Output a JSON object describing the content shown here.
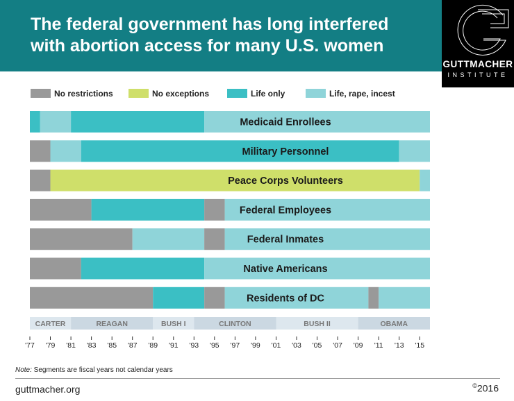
{
  "header": {
    "title_line1": "The federal government has long interfered",
    "title_line2": "with abortion access for many U.S. women",
    "background_color": "#137e84"
  },
  "logo": {
    "name": "GUTTMACHER",
    "sub": "INSTITUTE"
  },
  "footer": {
    "note_label": "Note:",
    "note_text": " Segments are fiscal years not calendar years",
    "url": "guttmacher.org",
    "copyright_symbol": "©",
    "year": "2016"
  },
  "chart_data": {
    "type": "bar",
    "orientation": "horizontal-timeline",
    "x_range": [
      1977,
      2016
    ],
    "x_ticks": [
      "'77",
      "'79",
      "'81",
      "'83",
      "'85",
      "'87",
      "'89",
      "'91",
      "'93",
      "'95",
      "'97",
      "'99",
      "'01",
      "'03",
      "'05",
      "'07",
      "'09",
      "'11",
      "'13",
      "'15"
    ],
    "legend": [
      {
        "key": "none",
        "label": "No restrictions",
        "color": "#999999"
      },
      {
        "key": "noex",
        "label": "No exceptions",
        "color": "#cfdf6a"
      },
      {
        "key": "life",
        "label": "Life only",
        "color": "#3bbfc4"
      },
      {
        "key": "lri",
        "label": "Life, rape, incest",
        "color": "#8fd4d9"
      }
    ],
    "administrations": [
      {
        "name": "CARTER",
        "start": 1977,
        "end": 1981,
        "shade": "#dde7ee"
      },
      {
        "name": "REAGAN",
        "start": 1981,
        "end": 1989,
        "shade": "#cbd8e2"
      },
      {
        "name": "BUSH I",
        "start": 1989,
        "end": 1993,
        "shade": "#dde7ee"
      },
      {
        "name": "CLINTON",
        "start": 1993,
        "end": 2001,
        "shade": "#cbd8e2"
      },
      {
        "name": "BUSH II",
        "start": 2001,
        "end": 2009,
        "shade": "#dde7ee"
      },
      {
        "name": "OBAMA",
        "start": 2009,
        "end": 2016,
        "shade": "#cbd8e2"
      }
    ],
    "series": [
      {
        "name": "Medicaid Enrollees",
        "segments": [
          {
            "start": 1977,
            "end": 1978,
            "type": "life"
          },
          {
            "start": 1978,
            "end": 1981,
            "type": "lri"
          },
          {
            "start": 1981,
            "end": 1994,
            "type": "life"
          },
          {
            "start": 1994,
            "end": 2016,
            "type": "lri"
          }
        ]
      },
      {
        "name": "Military Personnel",
        "segments": [
          {
            "start": 1977,
            "end": 1979,
            "type": "none"
          },
          {
            "start": 1979,
            "end": 1982,
            "type": "lri"
          },
          {
            "start": 1982,
            "end": 2013,
            "type": "life"
          },
          {
            "start": 2013,
            "end": 2016,
            "type": "lri"
          }
        ]
      },
      {
        "name": "Peace Corps Volunteers",
        "segments": [
          {
            "start": 1977,
            "end": 1979,
            "type": "none"
          },
          {
            "start": 1979,
            "end": 2015,
            "type": "noex"
          },
          {
            "start": 2015,
            "end": 2016,
            "type": "lri"
          }
        ]
      },
      {
        "name": "Federal Employees",
        "segments": [
          {
            "start": 1977,
            "end": 1983,
            "type": "none"
          },
          {
            "start": 1983,
            "end": 1994,
            "type": "life"
          },
          {
            "start": 1994,
            "end": 1996,
            "type": "none"
          },
          {
            "start": 1996,
            "end": 2016,
            "type": "lri"
          }
        ]
      },
      {
        "name": "Federal Inmates",
        "segments": [
          {
            "start": 1977,
            "end": 1987,
            "type": "none"
          },
          {
            "start": 1987,
            "end": 1994,
            "type": "lri"
          },
          {
            "start": 1994,
            "end": 1996,
            "type": "none"
          },
          {
            "start": 1996,
            "end": 2016,
            "type": "lri"
          }
        ]
      },
      {
        "name": "Native Americans",
        "segments": [
          {
            "start": 1977,
            "end": 1982,
            "type": "none"
          },
          {
            "start": 1982,
            "end": 1994,
            "type": "life"
          },
          {
            "start": 1994,
            "end": 2016,
            "type": "lri"
          }
        ]
      },
      {
        "name": "Residents of DC",
        "segments": [
          {
            "start": 1977,
            "end": 1989,
            "type": "none"
          },
          {
            "start": 1989,
            "end": 1994,
            "type": "life"
          },
          {
            "start": 1994,
            "end": 1996,
            "type": "none"
          },
          {
            "start": 1996,
            "end": 2010,
            "type": "lri"
          },
          {
            "start": 2010,
            "end": 2011,
            "type": "none"
          },
          {
            "start": 2011,
            "end": 2016,
            "type": "lri"
          }
        ]
      }
    ]
  }
}
